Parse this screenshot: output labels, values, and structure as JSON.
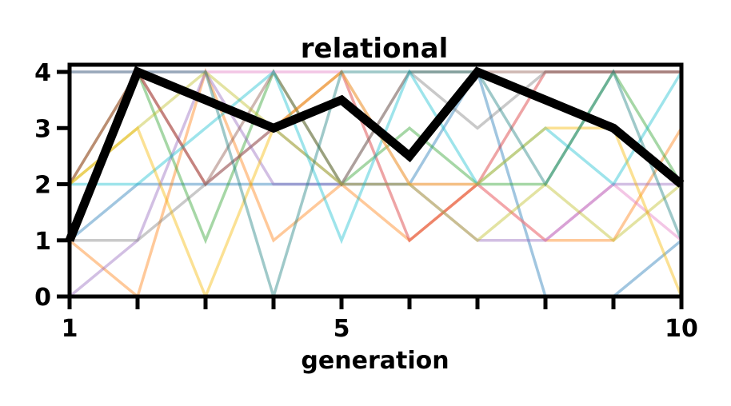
{
  "chart_data": {
    "type": "line",
    "title": "relational",
    "xlabel": "generation",
    "ylabel": "",
    "xlim": [
      1,
      10
    ],
    "ylim": [
      0,
      4
    ],
    "x": [
      1,
      2,
      3,
      4,
      5,
      6,
      7,
      8,
      9,
      10
    ],
    "x_ticks": [
      1,
      2,
      3,
      4,
      5,
      6,
      7,
      8,
      9,
      10
    ],
    "x_tick_labels": [
      "1",
      "",
      "",
      "",
      "5",
      "",
      "",
      "",
      "",
      "10"
    ],
    "y_ticks": [
      0,
      1,
      2,
      3,
      4
    ],
    "y_tick_labels": [
      "0",
      "1",
      "2",
      "3",
      "4"
    ],
    "grid": false,
    "legend": "none",
    "highlight": {
      "values": [
        1,
        4,
        3.5,
        3,
        3.5,
        2.5,
        4,
        3.5,
        3,
        2
      ],
      "color": "#000000"
    },
    "series": [
      {
        "color": "#1f77b4",
        "values": [
          1,
          2,
          2,
          2,
          2,
          2,
          4,
          0,
          0,
          1
        ]
      },
      {
        "color": "#ff7f0e",
        "values": [
          1,
          0,
          4,
          1,
          2,
          1,
          2,
          1,
          1,
          3
        ]
      },
      {
        "color": "#2ca02c",
        "values": [
          2,
          4,
          1,
          4,
          2,
          3,
          2,
          2,
          4,
          2
        ]
      },
      {
        "color": "#d62728",
        "values": [
          2,
          4,
          2,
          3,
          4,
          1,
          2,
          4,
          4,
          4
        ]
      },
      {
        "color": "#9467bd",
        "values": [
          0,
          1,
          4,
          2,
          2,
          2,
          1,
          1,
          2,
          2
        ]
      },
      {
        "color": "#8c564b",
        "values": [
          1,
          4,
          2,
          4,
          2,
          4,
          4,
          4,
          4,
          4
        ]
      },
      {
        "color": "#e377c2",
        "values": [
          4,
          4,
          4,
          4,
          4,
          2,
          2,
          1,
          2,
          1
        ]
      },
      {
        "color": "#7f7f7f",
        "values": [
          1,
          1,
          2,
          3,
          2,
          4,
          3,
          4,
          4,
          4
        ]
      },
      {
        "color": "#bcbd22",
        "values": [
          2,
          3,
          4,
          3,
          2,
          2,
          1,
          2,
          1,
          2
        ]
      },
      {
        "color": "#17becf",
        "values": [
          2,
          2,
          3,
          4,
          1,
          4,
          2,
          3,
          2,
          4
        ]
      },
      {
        "color": "#f5b700",
        "values": [
          2,
          3,
          0,
          3,
          4,
          2,
          2,
          3,
          3,
          0
        ]
      },
      {
        "color": "#1a7f7f",
        "values": [
          4,
          4,
          4,
          0,
          4,
          4,
          4,
          2,
          4,
          1
        ]
      }
    ]
  }
}
